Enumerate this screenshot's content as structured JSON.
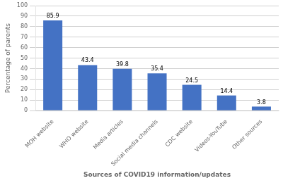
{
  "chart_data": {
    "type": "bar",
    "categories": [
      "MOH website",
      "WHO website",
      "Media articles",
      "Social media channels",
      "CDC website",
      "Videos-YouTube",
      "Other sources"
    ],
    "values": [
      85.9,
      43.4,
      39.8,
      35.4,
      24.5,
      14.4,
      3.8
    ],
    "color": "#4472c4",
    "xlabel": "Sources of COVID19 information/updates",
    "ylabel": "Percentage of parents",
    "ylim": [
      0,
      100
    ],
    "yticks": [
      0,
      10,
      20,
      30,
      40,
      50,
      60,
      70,
      80,
      90,
      100
    ],
    "grid": true,
    "data_labels": true
  }
}
